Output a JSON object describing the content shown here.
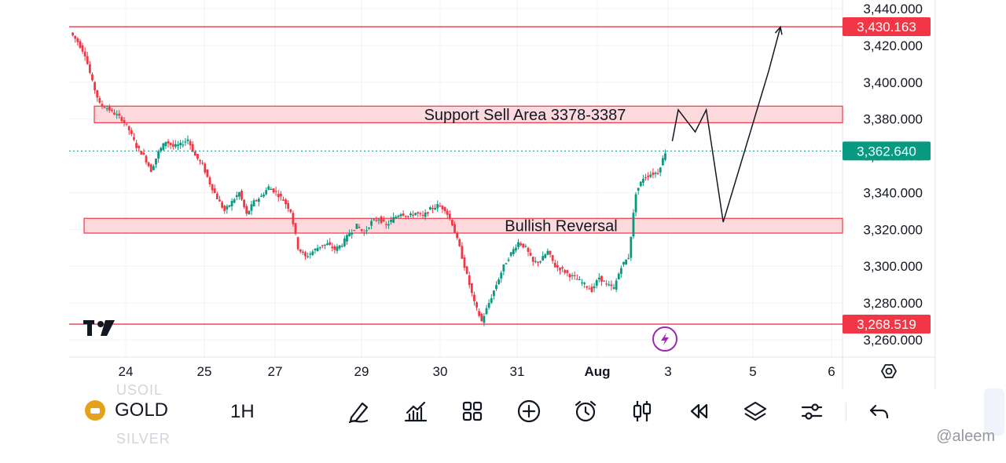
{
  "chart_data": {
    "type": "candlestick",
    "symbol": "GOLD",
    "timeframe": "1H",
    "y_ticks": [
      "3,440.000",
      "3,420.000",
      "3,400.000",
      "3,380.000",
      "3,360.000",
      "3,340.000",
      "3,320.000",
      "3,300.000",
      "3,280.000",
      "3,260.000"
    ],
    "y_tick_values": [
      3440,
      3420,
      3400,
      3380,
      3360,
      3340,
      3320,
      3300,
      3280,
      3260
    ],
    "ylim": [
      3255,
      3445
    ],
    "x_ticks": [
      {
        "label": "24",
        "x": 0
      },
      {
        "label": "25",
        "x": 1
      },
      {
        "label": "27",
        "x": 2
      },
      {
        "label": "29",
        "x": 3
      },
      {
        "label": "30",
        "x": 4
      },
      {
        "label": "31",
        "x": 5
      },
      {
        "label": "Aug",
        "x": 6,
        "bold": true
      },
      {
        "label": "3",
        "x": 7
      },
      {
        "label": "5",
        "x": 8
      },
      {
        "label": "6",
        "x": 9
      }
    ],
    "price_labels": [
      {
        "text": "3,430.163",
        "value": 3430.163,
        "color": "#f23645"
      },
      {
        "text": "3,362.640",
        "value": 3362.64,
        "color": "#089981"
      },
      {
        "text": "3,268.519",
        "value": 3268.519,
        "color": "#f23645"
      }
    ],
    "zones": [
      {
        "label": "Support Sell Area 3378-3387",
        "low": 3378,
        "high": 3387
      },
      {
        "label": "Bullish Reversal",
        "low": 3318,
        "high": 3326
      }
    ],
    "horizontal_lines": [
      3430.163,
      3268.519
    ],
    "close_path": [
      3427,
      3422,
      3415,
      3400,
      3388,
      3386,
      3383,
      3380,
      3374,
      3365,
      3360,
      3352,
      3362,
      3368,
      3365,
      3366,
      3369,
      3360,
      3355,
      3345,
      3337,
      3330,
      3335,
      3340,
      3328,
      3335,
      3338,
      3343,
      3340,
      3336,
      3330,
      3310,
      3305,
      3308,
      3311,
      3312,
      3309,
      3312,
      3318,
      3322,
      3318,
      3324,
      3326,
      3322,
      3326,
      3329,
      3327,
      3329,
      3327,
      3331,
      3333,
      3331,
      3323,
      3310,
      3295,
      3280,
      3270,
      3280,
      3290,
      3300,
      3307,
      3313,
      3310,
      3302,
      3303,
      3308,
      3300,
      3298,
      3295,
      3293,
      3290,
      3287,
      3294,
      3290,
      3288,
      3300,
      3305,
      3340,
      3348,
      3350,
      3351,
      3362
    ],
    "projection_path": [
      [
        7.05,
        3368
      ],
      [
        7.12,
        3385
      ],
      [
        7.32,
        3373
      ],
      [
        7.45,
        3385
      ],
      [
        7.65,
        3324
      ],
      [
        8.2,
        3406
      ],
      [
        8.35,
        3430
      ]
    ]
  },
  "toolbar": {
    "symbol": "GOLD",
    "timeframe": "1H",
    "ghost_above": "USOIL",
    "ghost_below": "SILVER"
  },
  "watermark": "@aleem",
  "colors": {
    "up": "#089981",
    "down": "#f23645",
    "zone_fill": "#fbd9dc",
    "zone_stroke": "#f23645"
  }
}
